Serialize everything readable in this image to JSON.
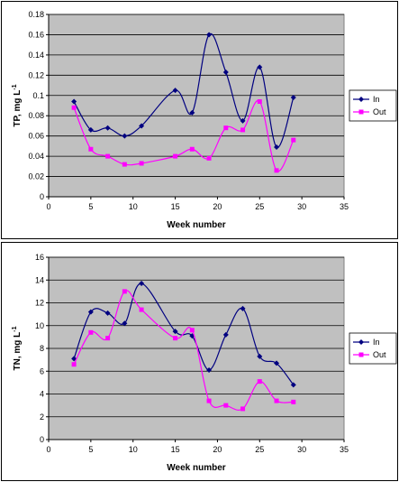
{
  "colors": {
    "plot_bg": "#c0c0c0",
    "gridline": "#000000",
    "in": "#000080",
    "out": "#ff00ff"
  },
  "chart_data": [
    {
      "type": "line",
      "title": "",
      "xlabel": "Week number",
      "ylabel_main": "TP, mg L",
      "ylabel_sup": "-1",
      "xlim": [
        0,
        35
      ],
      "ylim": [
        0,
        0.18
      ],
      "xticks": [
        "0",
        "5",
        "10",
        "15",
        "20",
        "25",
        "30",
        "35"
      ],
      "yticks": [
        "0",
        "0.02",
        "0.04",
        "0.06",
        "0.08",
        "0.1",
        "0.12",
        "0.14",
        "0.16",
        "0.18"
      ],
      "grid": true,
      "legend_position": "right",
      "x": [
        3,
        5,
        7,
        9,
        11,
        15,
        17,
        19,
        21,
        23,
        25,
        27,
        29
      ],
      "series": [
        {
          "name": "In",
          "marker": "diamond",
          "values": [
            0.094,
            0.066,
            0.068,
            0.06,
            0.07,
            0.105,
            0.083,
            0.16,
            0.123,
            0.075,
            0.128,
            0.049,
            0.098
          ]
        },
        {
          "name": "Out",
          "marker": "square",
          "values": [
            0.088,
            0.047,
            0.04,
            0.032,
            0.033,
            0.04,
            0.047,
            0.038,
            0.068,
            0.066,
            0.094,
            0.026,
            0.056
          ]
        }
      ]
    },
    {
      "type": "line",
      "title": "",
      "xlabel": "Week number",
      "ylabel_main": "TN, mg L",
      "ylabel_sup": "-1",
      "xlim": [
        0,
        35
      ],
      "ylim": [
        0,
        16
      ],
      "xticks": [
        "0",
        "5",
        "10",
        "15",
        "20",
        "25",
        "30",
        "35"
      ],
      "yticks": [
        "0",
        "2",
        "4",
        "6",
        "8",
        "10",
        "12",
        "14",
        "16"
      ],
      "grid": true,
      "legend_position": "right",
      "x": [
        3,
        5,
        7,
        9,
        11,
        15,
        17,
        19,
        21,
        23,
        25,
        27,
        29
      ],
      "series": [
        {
          "name": "In",
          "marker": "diamond",
          "values": [
            7.1,
            11.2,
            11.1,
            10.2,
            13.7,
            9.5,
            9.1,
            6.1,
            9.2,
            11.5,
            7.3,
            6.7,
            4.8
          ]
        },
        {
          "name": "Out",
          "marker": "square",
          "values": [
            6.6,
            9.4,
            8.9,
            13.0,
            11.4,
            8.9,
            9.6,
            3.4,
            3.0,
            2.7,
            5.1,
            3.4,
            3.3
          ]
        }
      ]
    }
  ]
}
